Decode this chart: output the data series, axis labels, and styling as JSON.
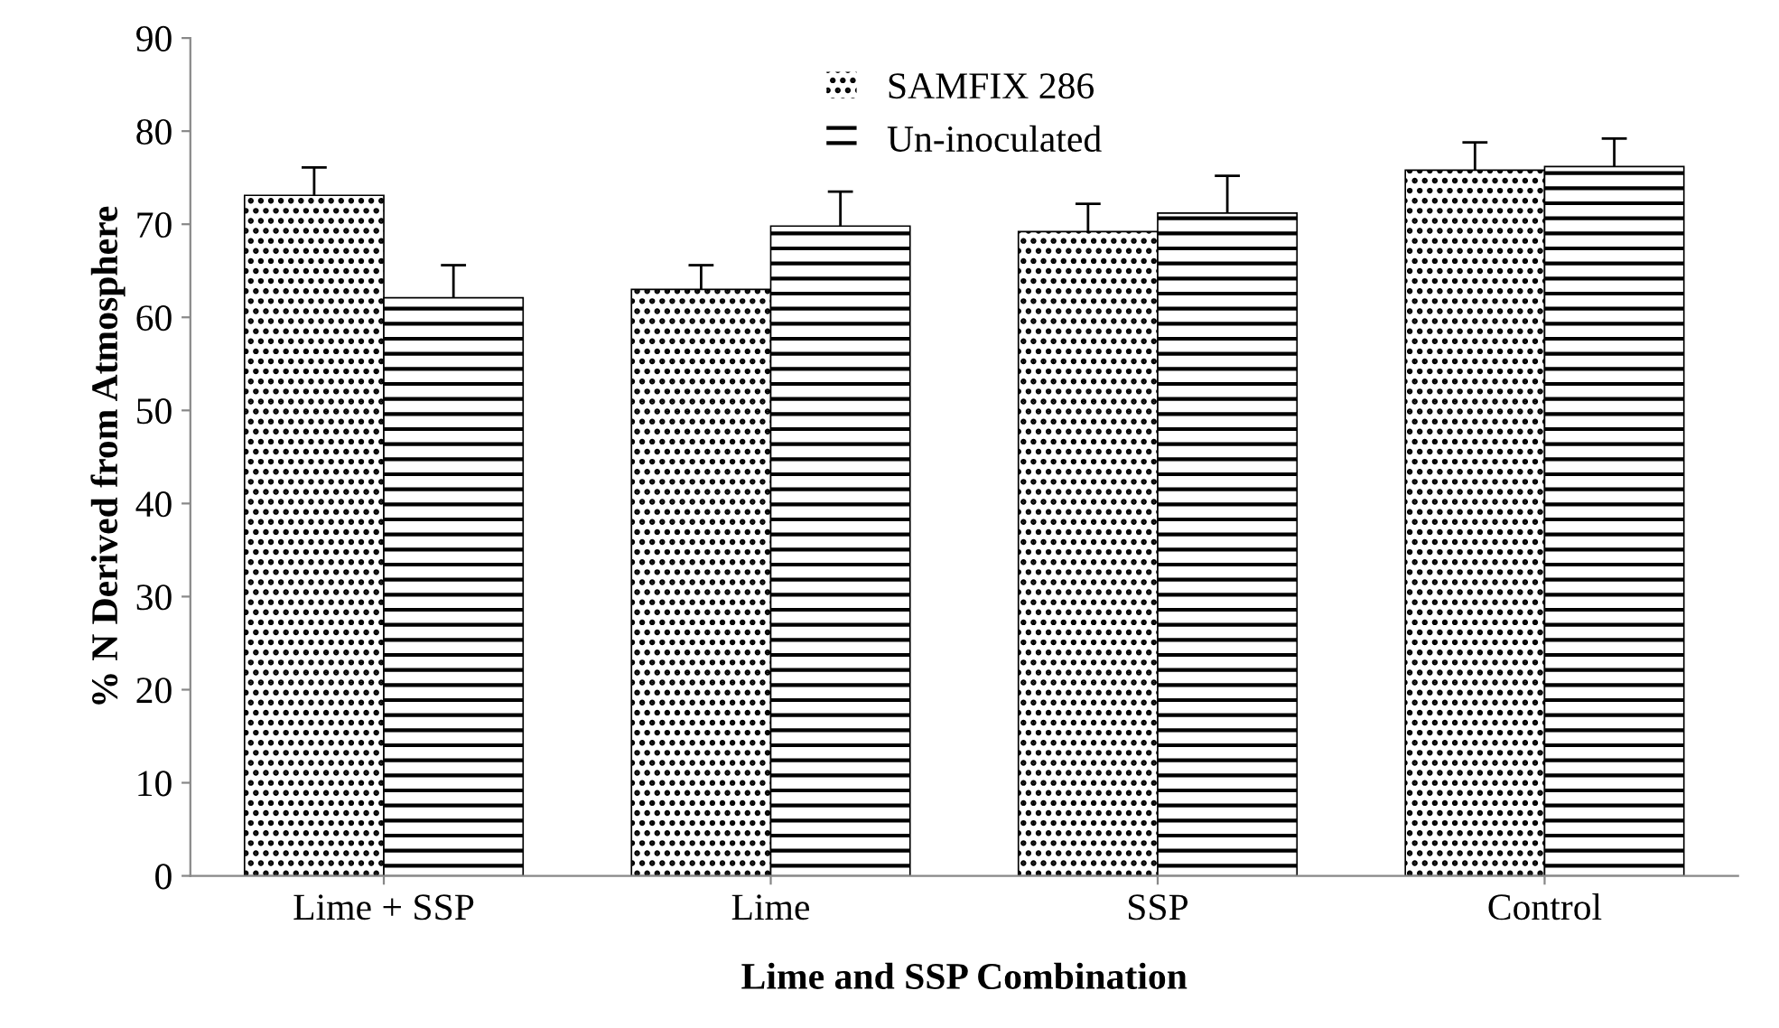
{
  "chart_data": {
    "type": "bar",
    "xlabel": "Lime and SSP Combination",
    "ylabel": "% N Derived from Atmosphere",
    "categories": [
      "Lime + SSP",
      "Lime",
      "SSP",
      "Control"
    ],
    "series": [
      {
        "name": "SAMFIX 286",
        "color": "#000000",
        "values": [
          73.1,
          63.0,
          69.2,
          75.8
        ],
        "errors": [
          [
            73.1,
            76.1
          ],
          [
            63.0,
            65.6
          ],
          [
            69.2,
            72.2
          ],
          [
            75.8,
            78.8
          ]
        ]
      },
      {
        "name": "Un-inoculated",
        "color": "#000000",
        "values": [
          62.1,
          69.8,
          71.2,
          76.2
        ],
        "errors": [
          [
            62.1,
            65.6
          ],
          [
            69.8,
            73.5
          ],
          [
            71.2,
            75.2
          ],
          [
            76.2,
            79.2
          ]
        ]
      }
    ],
    "ylim": [
      0,
      90
    ],
    "yticks": [
      0,
      10,
      20,
      30,
      40,
      50,
      60,
      70,
      80,
      90
    ],
    "grid": false,
    "legend": "top"
  }
}
